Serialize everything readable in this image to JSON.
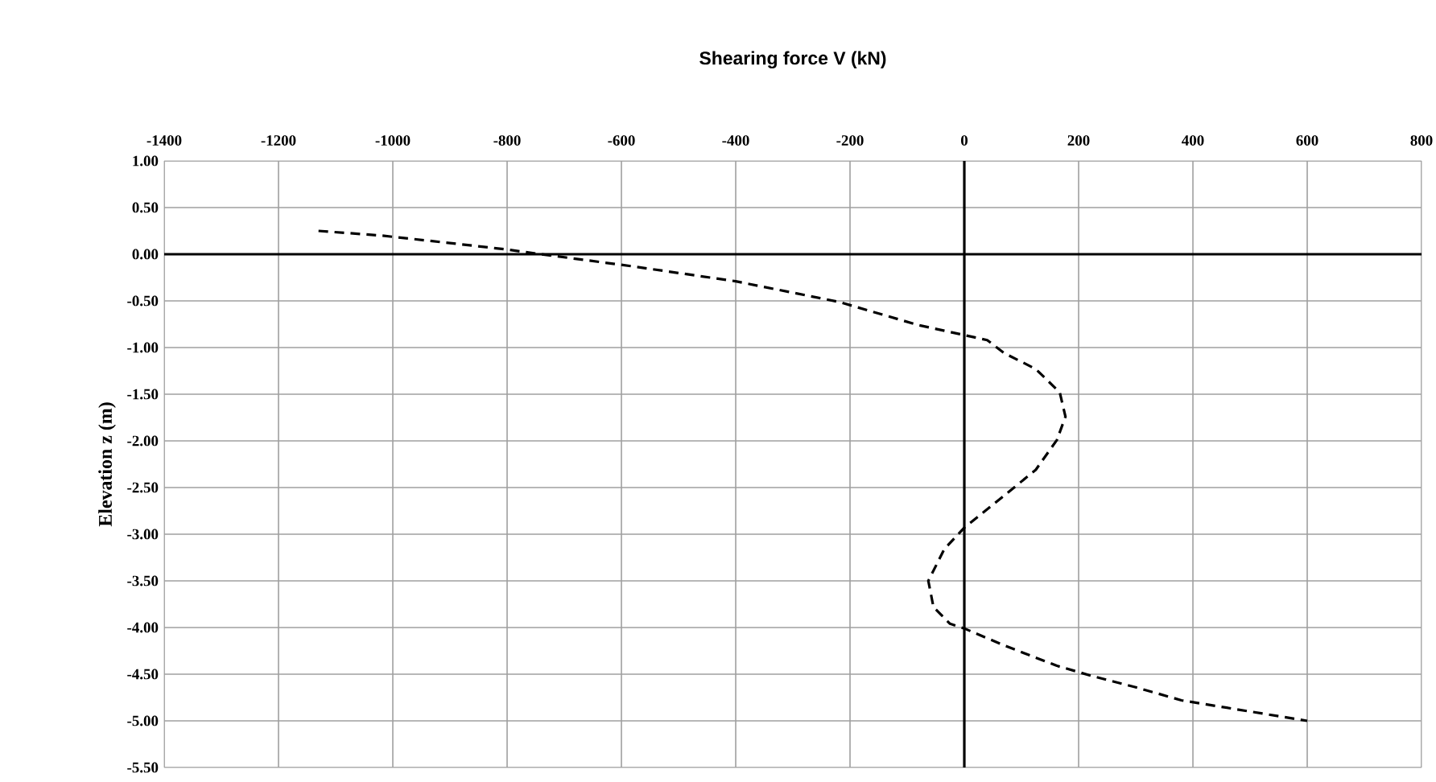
{
  "chart_data": {
    "type": "line",
    "title": "Shearing force  V (kN)",
    "ylabel": "Elevation z (m)",
    "xlim": [
      -1400,
      800
    ],
    "xticks": [
      -1400,
      -1200,
      -1000,
      -800,
      -600,
      -400,
      -200,
      0,
      200,
      400,
      600,
      800
    ],
    "ylim": [
      -5.5,
      1.0
    ],
    "yticks": [
      {
        "value": 1.0,
        "label": "1.00"
      },
      {
        "value": 0.5,
        "label": "0.50"
      },
      {
        "value": 0,
        "label": "0.00"
      },
      {
        "value": -0.5,
        "label": "-0.50"
      },
      {
        "value": -1.0,
        "label": "-1.00"
      },
      {
        "value": -1.5,
        "label": "-1.50"
      },
      {
        "value": -2.0,
        "label": "-2.00"
      },
      {
        "value": -2.5,
        "label": "-2.50"
      },
      {
        "value": -3.0,
        "label": "-3.00"
      },
      {
        "value": -3.5,
        "label": "-3.50"
      },
      {
        "value": -4.0,
        "label": "-4.00"
      },
      {
        "value": -4.5,
        "label": "-4.50"
      },
      {
        "value": -5.0,
        "label": "-5.00"
      },
      {
        "value": -5.5,
        "label": "-5.50"
      }
    ],
    "grid": true,
    "marker": "none",
    "line_style": "dashed",
    "series": [
      {
        "color": "#000000",
        "x": [
          -1130,
          -1020,
          -900,
          -800,
          -740,
          -580,
          -400,
          -220,
          -80,
          40,
          70,
          125,
          167,
          177,
          162,
          125,
          69,
          0,
          -35,
          -63,
          -54,
          -25,
          0,
          69,
          162,
          224,
          300,
          380,
          500,
          600
        ],
        "values": [
          0.25,
          0.2,
          0.12,
          0.05,
          0,
          -0.13,
          -0.29,
          -0.51,
          -0.76,
          -0.92,
          -1.06,
          -1.23,
          -1.48,
          -1.74,
          -1.99,
          -2.31,
          -2.59,
          -2.93,
          -3.16,
          -3.5,
          -3.78,
          -3.96,
          -4.01,
          -4.19,
          -4.41,
          -4.52,
          -4.64,
          -4.78,
          -4.9,
          -5.0
        ]
      }
    ]
  }
}
